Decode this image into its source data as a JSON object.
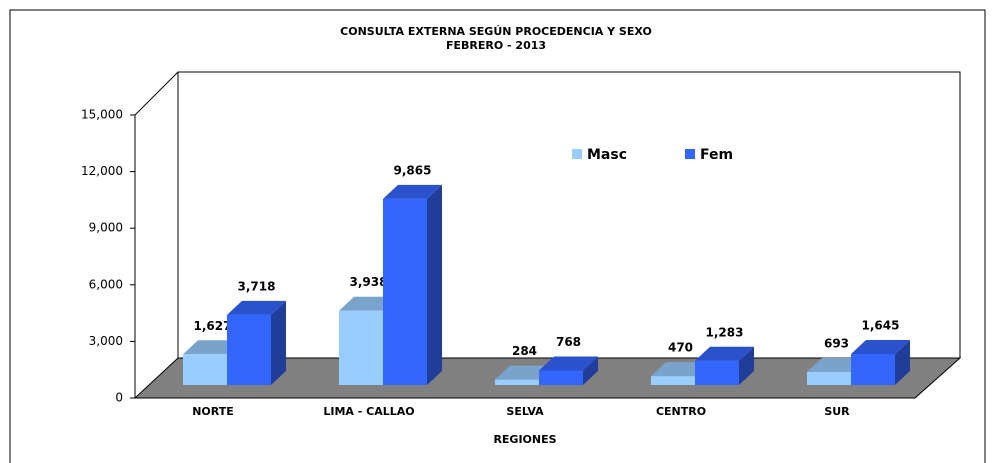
{
  "chart_data": {
    "type": "bar3d",
    "title": "CONSULTA EXTERNA SEGÚN PROCEDENCIA Y SEXO",
    "subtitle": "FEBRERO  -  2013",
    "x_label": "REGIONES",
    "categories": [
      "NORTE",
      "LIMA - CALLAO",
      "SELVA",
      "CENTRO",
      "SUR"
    ],
    "series": [
      {
        "name": "Masc",
        "color": "#99ccff",
        "values": [
          1627,
          3938,
          284,
          470,
          693
        ],
        "value_labels": [
          "1,627",
          "3,938",
          "284",
          "470",
          "693"
        ]
      },
      {
        "name": "Fem",
        "color": "#3366ff",
        "values": [
          3718,
          9865,
          768,
          1283,
          1645
        ],
        "value_labels": [
          "3,718",
          "9,865",
          "768",
          "1,283",
          "1,645"
        ]
      }
    ],
    "ylim": [
      0,
      15000
    ],
    "yticks": [
      0,
      {
        "value": 3000,
        "label": "3,000"
      },
      {
        "value": 6000,
        "label": "6,000"
      },
      {
        "value": 9000,
        "label": "9,000"
      },
      {
        "value": 12000,
        "label": "12,000"
      },
      {
        "value": 15000,
        "label": "15,000"
      }
    ],
    "grid": false,
    "legend": "top-right"
  }
}
